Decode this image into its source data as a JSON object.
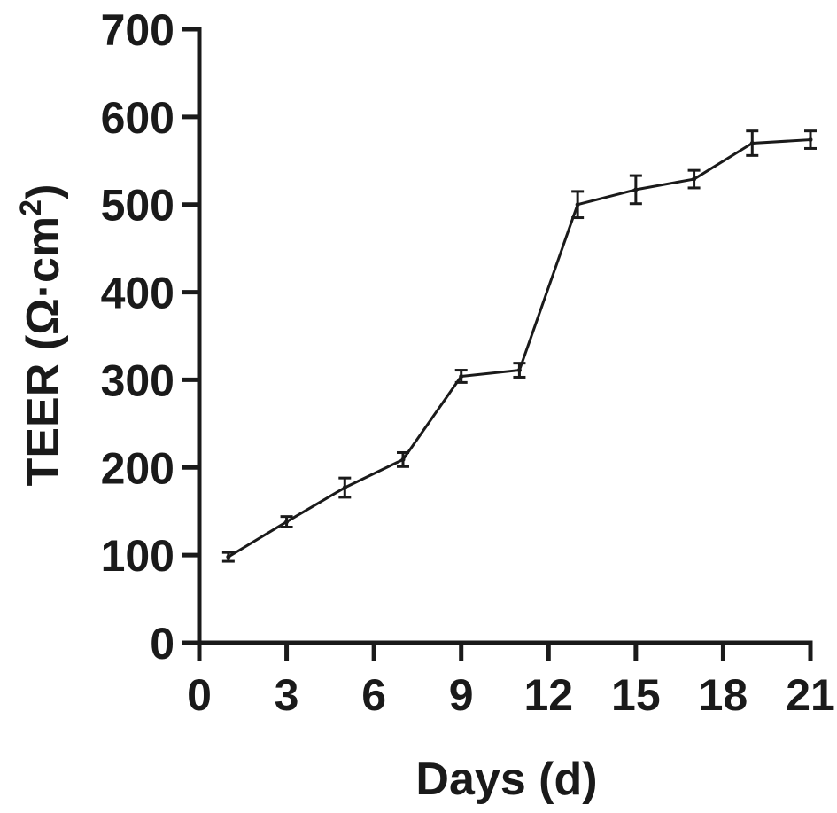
{
  "chart_data": {
    "type": "line",
    "title": "",
    "xlabel": "Days (d)",
    "ylabel": "TEER (Ω·cm²)",
    "ylabel_parts": {
      "main": "TEER (Ω·cm",
      "sup": "2",
      "close": ")"
    },
    "xlim": [
      0,
      21
    ],
    "ylim": [
      0,
      700
    ],
    "xticks": [
      0,
      3,
      6,
      9,
      12,
      15,
      18,
      21
    ],
    "yticks": [
      0,
      100,
      200,
      300,
      400,
      500,
      600,
      700
    ],
    "grid": false,
    "series": [
      {
        "x": [
          1,
          3,
          5,
          7,
          9,
          11,
          13,
          15,
          17,
          19,
          21
        ],
        "y": [
          98,
          138,
          177,
          209,
          304,
          311,
          500,
          517,
          529,
          570,
          574
        ],
        "error": [
          5,
          6,
          11,
          8,
          7,
          8,
          15,
          16,
          10,
          14,
          10
        ],
        "color": "#1a1a1a"
      }
    ]
  }
}
